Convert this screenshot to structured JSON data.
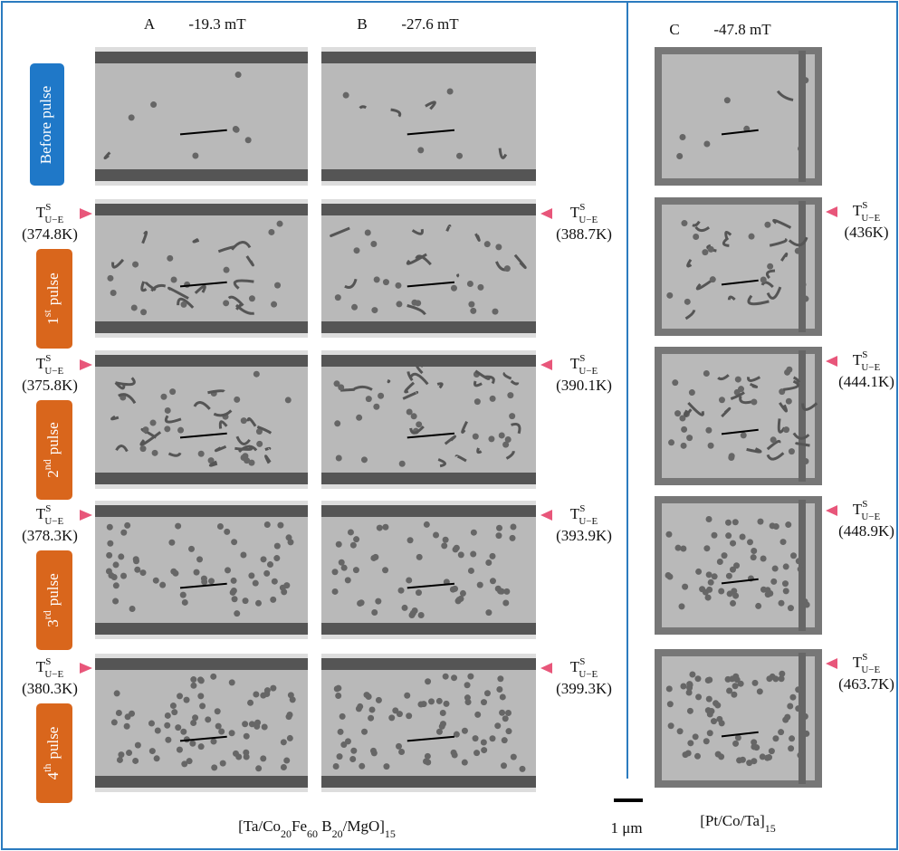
{
  "panels": [
    {
      "letter": "A",
      "field": "-19.3 mT",
      "temperatures": [
        "(374.8K)",
        "(375.8K)",
        "(378.3K)",
        "(380.3K)"
      ]
    },
    {
      "letter": "B",
      "field": "-27.6 mT",
      "temperatures": [
        "(388.7K)",
        "(390.1K)",
        "(393.9K)",
        "(399.3K)"
      ]
    },
    {
      "letter": "C",
      "field": "-47.8 mT",
      "temperatures": [
        "(436K)",
        "(444.1K)",
        "(448.9K)",
        "(463.7K)"
      ]
    }
  ],
  "temperature_symbol": {
    "base": "T",
    "sup": "S",
    "sub": "U−E"
  },
  "rows": [
    {
      "label": "Before pulse"
    },
    {
      "number": "1",
      "suffix": "st",
      "word": "pulse"
    },
    {
      "number": "2",
      "suffix": "nd",
      "word": "pulse"
    },
    {
      "number": "3",
      "suffix": "rd",
      "word": "pulse"
    },
    {
      "number": "4",
      "suffix": "th",
      "word": "pulse"
    }
  ],
  "left_material": [
    "[Ta/Co",
    "20",
    "Fe",
    "60",
    " B",
    "20",
    "/MgO]",
    "15"
  ],
  "right_material": [
    "[Pt/Co/Ta]",
    "15"
  ],
  "scale_bar": "1 μm"
}
